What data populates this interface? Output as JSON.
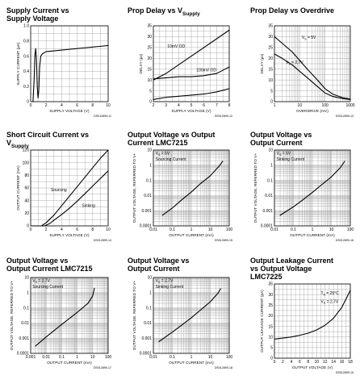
{
  "chart_data": [
    {
      "id": "p1",
      "type": "line",
      "title": "Supply Current vs",
      "title_line2": "Supply Voltage",
      "title_sub": "",
      "xlabel": "SUPPLY VOLTAGE (V)",
      "ylabel": "SUPPLY CURRENT (µA)",
      "xscale": "linear",
      "yscale": "linear",
      "xlim": [
        0,
        10
      ],
      "ylim": [
        0,
        1.0
      ],
      "xticks": [
        0,
        2,
        4,
        6,
        8,
        10
      ],
      "yticks": [
        0,
        0.2,
        0.4,
        0.6,
        0.8,
        1.0
      ],
      "xticklabels": [
        "0",
        "2",
        "4",
        "6",
        "8",
        "10"
      ],
      "yticklabels": [
        "0",
        "0.2",
        "0.4",
        "0.6",
        "0.8",
        "1.0"
      ],
      "grid": true,
      "code": "DS012899-11",
      "series": [
        {
          "x": [
            0.3,
            0.45,
            0.55,
            0.65,
            0.75,
            0.85,
            0.95,
            1.05,
            1.15,
            1.3,
            1.5,
            2,
            3,
            4,
            5,
            6,
            7,
            8,
            9,
            10
          ],
          "y": [
            0.0,
            0.3,
            0.62,
            0.7,
            0.55,
            0.2,
            0.05,
            0.15,
            0.45,
            0.6,
            0.63,
            0.66,
            0.67,
            0.68,
            0.69,
            0.7,
            0.71,
            0.72,
            0.73,
            0.74
          ]
        }
      ],
      "annotations": []
    },
    {
      "id": "p2",
      "type": "line",
      "title": "Prop Delay vs V",
      "title_line2": "",
      "title_sub": "Supply",
      "xlabel": "SUPPLY VOLTAGE (V)",
      "ylabel": "DELAY (µs)",
      "xscale": "linear",
      "yscale": "linear",
      "xlim": [
        2,
        8
      ],
      "ylim": [
        0,
        35
      ],
      "xticks": [
        2,
        3,
        4,
        5,
        6,
        7,
        8
      ],
      "yticks": [
        0,
        5,
        10,
        15,
        20,
        25,
        30,
        35
      ],
      "xticklabels": [
        "2",
        "3",
        "4",
        "5",
        "6",
        "7",
        "8"
      ],
      "yticklabels": [
        "0",
        "5",
        "10",
        "15",
        "20",
        "25",
        "30",
        "35"
      ],
      "grid": true,
      "code": "DS012899-12",
      "series": [
        {
          "x": [
            2,
            3,
            4,
            5,
            6,
            7,
            8
          ],
          "y": [
            10,
            13,
            17,
            21,
            25,
            29,
            33
          ]
        },
        {
          "x": [
            2,
            3,
            4,
            5,
            6,
            7,
            8
          ],
          "y": [
            1,
            2,
            2.5,
            3,
            3.5,
            4.5,
            6
          ]
        },
        {
          "x": [
            2,
            3,
            4,
            5,
            6,
            7,
            7.5,
            8
          ],
          "y": [
            10.5,
            11,
            11.5,
            11.5,
            12,
            13,
            14.5,
            16
          ]
        }
      ],
      "annotations": [
        {
          "text": "10mV OD",
          "x": 3.1,
          "y": 25
        },
        {
          "text": "100mV OD",
          "x": 5.4,
          "y": 14
        }
      ]
    },
    {
      "id": "p3",
      "type": "line",
      "title": "Prop Delay vs Overdrive",
      "title_line2": "",
      "title_sub": "",
      "xlabel": "OVERDRIVE (mV)",
      "ylabel": "DELAY (µs)",
      "xscale": "log",
      "yscale": "linear",
      "xlim": [
        1,
        1000
      ],
      "ylim": [
        0,
        35
      ],
      "xticks": [
        1,
        10,
        100,
        1000
      ],
      "yticks": [
        0,
        5,
        10,
        15,
        20,
        25,
        30,
        35
      ],
      "xticklabels": [
        "1",
        "10",
        "100",
        "1000"
      ],
      "yticklabels": [
        "0",
        "5",
        "10",
        "15",
        "20",
        "25",
        "30",
        "35"
      ],
      "grid": true,
      "code": "DS012899-13",
      "series": [
        {
          "x": [
            1,
            2,
            5,
            10,
            20,
            50,
            100,
            200,
            500,
            1000
          ],
          "y": [
            30,
            27,
            23,
            19,
            15,
            10,
            6,
            3.5,
            1.8,
            1.2
          ]
        },
        {
          "x": [
            1,
            2,
            5,
            10,
            20,
            50,
            100,
            200,
            500,
            1000
          ],
          "y": [
            22,
            20,
            17,
            14,
            11,
            7,
            4,
            2.4,
            1.4,
            1
          ]
        }
      ],
      "annotations": [
        {
          "text": "V",
          "sub": "S",
          "rest": " = 5V",
          "x": 12,
          "y": 29
        },
        {
          "text": "V",
          "sub": "S",
          "rest": " = 2.7V",
          "x": 2.8,
          "y": 17.5
        }
      ]
    },
    {
      "id": "p4",
      "type": "line",
      "title": "Short Circuit Current vs",
      "title_line2": "V",
      "title_sub": "Supply",
      "xlabel": "SUPPLY VOLTAGE (V)",
      "ylabel": "OUTPUT CURRENT (mA)",
      "xscale": "linear",
      "yscale": "linear",
      "xlim": [
        0,
        10
      ],
      "ylim": [
        0,
        120
      ],
      "xticks": [
        0,
        2,
        4,
        6,
        8,
        10
      ],
      "yticks": [
        0,
        20,
        40,
        60,
        80,
        100,
        120
      ],
      "xticklabels": [
        "0",
        "2",
        "4",
        "6",
        "8",
        "10"
      ],
      "yticklabels": [
        "0",
        "20",
        "40",
        "60",
        "80",
        "100",
        "120"
      ],
      "grid": true,
      "code": "DS012899-14",
      "series": [
        {
          "x": [
            0,
            1.4,
            2,
            3,
            4,
            5,
            6,
            7,
            8,
            9,
            10
          ],
          "y": [
            0,
            0,
            5,
            17,
            32,
            47,
            62,
            77,
            92,
            107,
            120
          ]
        },
        {
          "x": [
            0,
            1.8,
            2.5,
            3,
            4,
            5,
            6,
            7,
            8,
            9,
            10
          ],
          "y": [
            0,
            0,
            4,
            9,
            18,
            28,
            39,
            51,
            63,
            75,
            87
          ]
        }
      ],
      "annotations": [
        {
          "text": "Sourcing",
          "x": 2.6,
          "y": 55
        },
        {
          "text": "Sinking",
          "x": 6.6,
          "y": 30
        }
      ]
    },
    {
      "id": "p5",
      "type": "line",
      "title": "Output Voltage vs Output",
      "title_line2": "Current LMC7215",
      "title_sub": "",
      "xlabel": "OUTPUT CURRENT (mA)",
      "ylabel": "OUTPUT VOLTAGE, REFERRED TO V+",
      "xscale": "log",
      "yscale": "log",
      "xlim": [
        0.01,
        100
      ],
      "ylim": [
        0.0001,
        10
      ],
      "xticks": [
        0.01,
        0.1,
        1,
        10,
        100
      ],
      "yticks": [
        0.0001,
        0.001,
        0.01,
        0.1,
        1,
        10
      ],
      "xticklabels": [
        "0.01",
        "0.1",
        "1",
        "10",
        "100"
      ],
      "yticklabels": [
        "0.0001",
        "0.001",
        "0.01",
        "0.1",
        "1",
        "10"
      ],
      "grid": true,
      "code": "DS012899-15",
      "series": [
        {
          "x": [
            0.03,
            0.1,
            0.3,
            1,
            3,
            10,
            30,
            45
          ],
          "y": [
            0.0005,
            0.0015,
            0.005,
            0.017,
            0.06,
            0.2,
            0.9,
            1.8
          ]
        }
      ],
      "annotations": [
        {
          "text": "V",
          "sub": "S",
          "rest": " = 5V",
          "x": 0.013,
          "y": 5
        },
        {
          "text": "Sourcing Current",
          "x": 0.013,
          "y": 2
        }
      ]
    },
    {
      "id": "p6",
      "type": "line",
      "title": "Output Voltage vs",
      "title_line2": "Output Current",
      "title_sub": "",
      "xlabel": "OUTPUT CURRENT (mA)",
      "ylabel": "OUTPUT VOLTAGE, REFERRED TO V+",
      "xscale": "log",
      "yscale": "log",
      "xlim": [
        0.01,
        100
      ],
      "ylim": [
        0.0001,
        10
      ],
      "xticks": [
        0.01,
        0.1,
        1,
        10,
        100
      ],
      "yticks": [
        0.0001,
        0.001,
        0.01,
        0.1,
        1,
        10
      ],
      "xticklabels": [
        "0.01",
        "0.1",
        "1",
        "10",
        "100"
      ],
      "yticklabels": [
        "0.0001",
        "0.001",
        "0.01",
        "0.1",
        "1",
        "10"
      ],
      "grid": true,
      "code": "DS012899-16",
      "series": [
        {
          "x": [
            0.02,
            0.1,
            0.3,
            1,
            3,
            10,
            30,
            50
          ],
          "y": [
            0.0005,
            0.0018,
            0.005,
            0.016,
            0.05,
            0.17,
            0.7,
            1.8
          ]
        }
      ],
      "annotations": [
        {
          "text": "V",
          "sub": "S",
          "rest": " = 5V",
          "x": 0.013,
          "y": 5
        },
        {
          "text": "Sinking Current",
          "x": 0.013,
          "y": 2
        }
      ]
    },
    {
      "id": "p7",
      "type": "line",
      "title": "Output Voltage vs",
      "title_line2": "Output Current LMC7215",
      "title_sub": "",
      "xlabel": "OUTPUT CURRENT (mA)",
      "ylabel": "OUTPUT VOLTAGE, REFERRED TO V+",
      "xscale": "log",
      "yscale": "log",
      "xlim": [
        0.001,
        100
      ],
      "ylim": [
        0.0001,
        10
      ],
      "xticks": [
        0.001,
        0.01,
        0.1,
        1,
        10,
        100
      ],
      "yticks": [
        0.0001,
        0.001,
        0.01,
        0.1,
        1,
        10
      ],
      "xticklabels": [
        "0.001",
        "0.01",
        "0.1",
        "1",
        "10",
        "100"
      ],
      "yticklabels": [
        "0.0001",
        "0.001",
        "0.01",
        "0.1",
        "1",
        "10"
      ],
      "grid": true,
      "code": "DS012899-17",
      "series": [
        {
          "x": [
            0.002,
            0.01,
            0.1,
            1,
            5,
            10,
            13
          ],
          "y": [
            0.0003,
            0.0012,
            0.008,
            0.05,
            0.2,
            0.6,
            2
          ]
        }
      ],
      "annotations": [
        {
          "text": "V",
          "sub": "S",
          "rest": " = 2.7V",
          "x": 0.0013,
          "y": 5
        },
        {
          "text": "Sourcing Current",
          "x": 0.0013,
          "y": 2
        }
      ]
    },
    {
      "id": "p8",
      "type": "line",
      "title": "Output Voltage vs",
      "title_line2": "Output Current",
      "title_sub": "",
      "xlabel": "OUTPUT CURRENT (mA)",
      "ylabel": "OUTPUT VOLTAGE, REFERRED TO V+",
      "xscale": "log",
      "yscale": "log",
      "xlim": [
        0.01,
        100
      ],
      "ylim": [
        0.0001,
        10
      ],
      "xticks": [
        0.01,
        0.1,
        1,
        10,
        100
      ],
      "yticks": [
        0.0001,
        0.001,
        0.01,
        0.1,
        1,
        10
      ],
      "xticklabels": [
        "0.01",
        "0.1",
        "1",
        "10",
        "100"
      ],
      "yticklabels": [
        "0.0001",
        "0.001",
        "0.01",
        "0.1",
        "1",
        "10"
      ],
      "grid": true,
      "code": "DS012899-18",
      "series": [
        {
          "x": [
            0.02,
            0.1,
            0.3,
            1,
            3,
            10,
            25,
            35
          ],
          "y": [
            0.0006,
            0.0025,
            0.007,
            0.022,
            0.07,
            0.25,
            0.9,
            1.8
          ]
        }
      ],
      "annotations": [
        {
          "text": "V",
          "sub": "S",
          "rest": " = 2.7V",
          "x": 0.013,
          "y": 5
        },
        {
          "text": "Sinking Current",
          "x": 0.013,
          "y": 2
        }
      ]
    },
    {
      "id": "p9",
      "type": "line",
      "title": "Output Leakage Current",
      "title_line2": "vs Output Voltage",
      "title_line3": "LMC7225",
      "title_sub": "",
      "xlabel": "OUTPUT VOLTAGE (V)",
      "ylabel": "OUTPUT LEAKAGE CURRENT (pA)",
      "xscale": "linear",
      "yscale": "linear",
      "xlim": [
        0,
        18
      ],
      "ylim": [
        0,
        35
      ],
      "xticks": [
        0,
        2,
        4,
        6,
        8,
        10,
        12,
        14,
        16,
        18
      ],
      "yticks": [
        0,
        5,
        10,
        15,
        20,
        25,
        30,
        35
      ],
      "xticklabels": [
        "0",
        "2",
        "4",
        "6",
        "8",
        "10",
        "12",
        "14",
        "16",
        "18"
      ],
      "yticklabels": [
        "0",
        "5",
        "10",
        "15",
        "20",
        "25",
        "30",
        "35"
      ],
      "grid": true,
      "code": "DS012899-19",
      "series": [
        {
          "x": [
            0,
            2,
            4,
            6,
            8,
            10,
            12,
            14,
            16,
            18
          ],
          "y": [
            9,
            9.5,
            10,
            10.8,
            11.8,
            13.3,
            15.5,
            18.8,
            24,
            32
          ]
        }
      ],
      "annotations": [
        {
          "text": "T",
          "sub": "A",
          "rest": " = 25°C",
          "x": 11,
          "y": 30
        },
        {
          "text": "V",
          "sub": "S",
          "rest": " = 2.7V",
          "x": 11,
          "y": 26
        }
      ]
    }
  ]
}
